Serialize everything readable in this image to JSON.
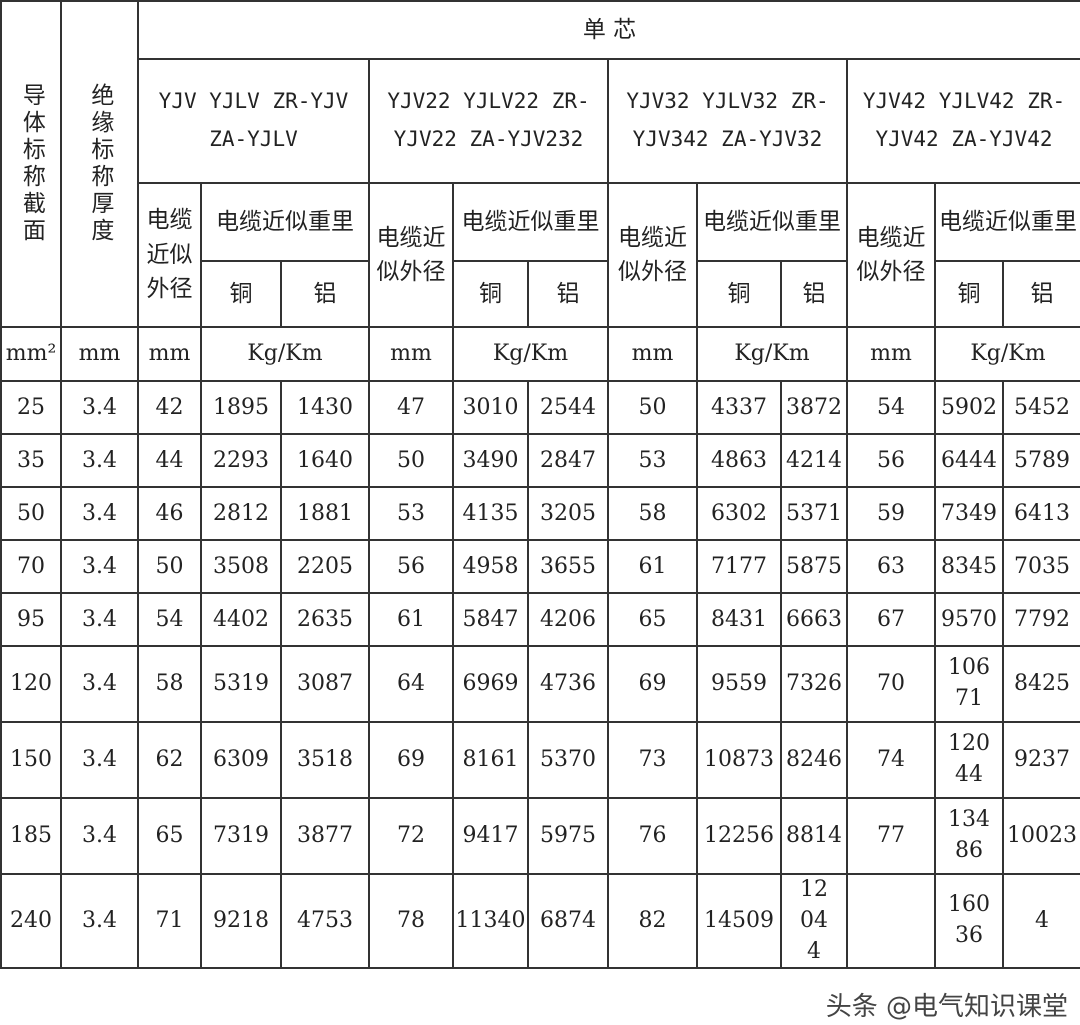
{
  "header": {
    "col_section": "导体标称截面",
    "col_insulation": "绝缘标称厚度",
    "single_core": "单      芯",
    "groups": [
      {
        "models": "YJV YJLV ZR-YJV ZA-YJLV",
        "diameter": "电缆近似外径",
        "weight": "电缆近似重里",
        "copper": "铜",
        "aluminum": "铝"
      },
      {
        "models": "YJV22 YJLV22 ZR-YJV22 ZA-YJV232",
        "diameter": "电缆近似外径",
        "weight": "电缆近似重里",
        "copper": "铜",
        "aluminum": "铝"
      },
      {
        "models": "YJV32 YJLV32 ZR-YJV342 ZA-YJV32",
        "diameter": "电缆近似外径",
        "weight": "电缆近似重里",
        "copper": "铜",
        "aluminum": "铝"
      },
      {
        "models": "YJV42 YJLV42 ZR-YJV42 ZA-YJV42",
        "diameter": "电缆近似外径",
        "weight": "电缆近似重里",
        "copper": "铜",
        "aluminum": "铝"
      }
    ]
  },
  "units": {
    "section": "mm²",
    "mm": "mm",
    "weight": "Kg/Km"
  },
  "rows": [
    [
      "25",
      "3.4",
      "42",
      "1895",
      "1430",
      "47",
      "3010",
      "2544",
      "50",
      "4337",
      "3872",
      "54",
      "5902",
      "5452"
    ],
    [
      "35",
      "3.4",
      "44",
      "2293",
      "1640",
      "50",
      "3490",
      "2847",
      "53",
      "4863",
      "4214",
      "56",
      "6444",
      "5789"
    ],
    [
      "50",
      "3.4",
      "46",
      "2812",
      "1881",
      "53",
      "4135",
      "3205",
      "58",
      "6302",
      "5371",
      "59",
      "7349",
      "6413"
    ],
    [
      "70",
      "3.4",
      "50",
      "3508",
      "2205",
      "56",
      "4958",
      "3655",
      "61",
      "7177",
      "5875",
      "63",
      "8345",
      "7035"
    ],
    [
      "95",
      "3.4",
      "54",
      "4402",
      "2635",
      "61",
      "5847",
      "4206",
      "65",
      "8431",
      "6663",
      "67",
      "9570",
      "7792"
    ],
    [
      "120",
      "3.4",
      "58",
      "5319",
      "3087",
      "64",
      "6969",
      "4736",
      "69",
      "9559",
      "7326",
      "70",
      "10671",
      "8425"
    ],
    [
      "150",
      "3.4",
      "62",
      "6309",
      "3518",
      "69",
      "8161",
      "5370",
      "73",
      "10873",
      "8246",
      "74",
      "12044",
      "9237"
    ],
    [
      "185",
      "3.4",
      "65",
      "7319",
      "3877",
      "72",
      "9417",
      "5975",
      "76",
      "12256",
      "8814",
      "77",
      "13486",
      "10023"
    ],
    [
      "240",
      "3.4",
      "71",
      "9218",
      "4753",
      "78",
      "11340",
      "6874",
      "82",
      "14509",
      "12044",
      "",
      "16036",
      "4"
    ]
  ],
  "watermark": "头条 @电气知识课堂"
}
